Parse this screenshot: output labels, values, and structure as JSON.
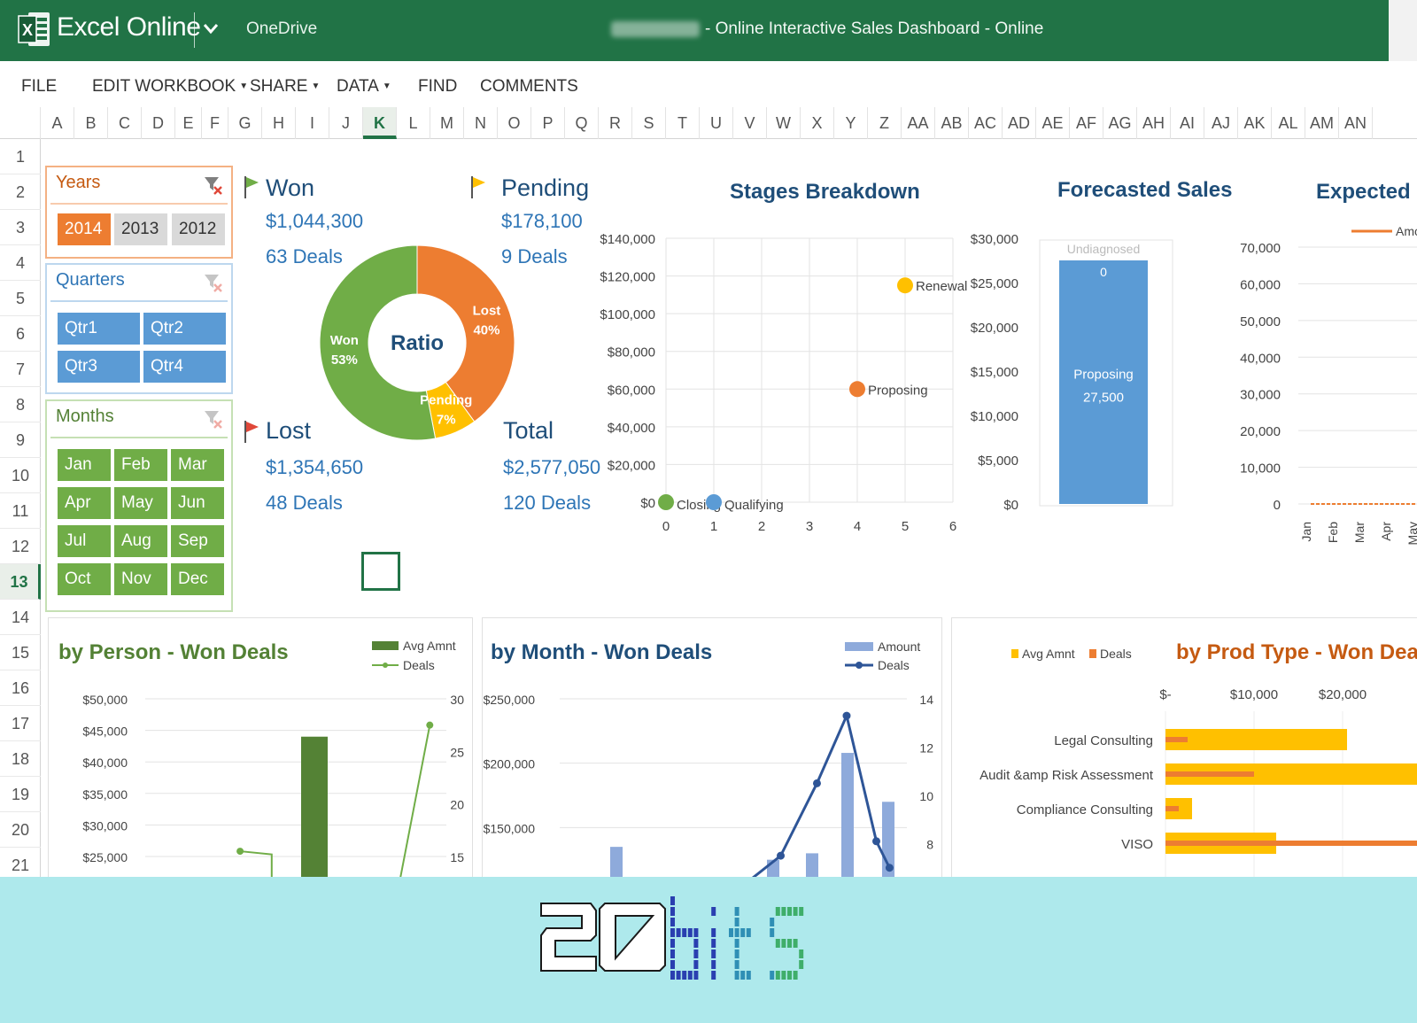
{
  "app": {
    "name": "Excel Online",
    "location": "OneDrive",
    "doc_title": "- Online Interactive Sales Dashboard - Online"
  },
  "ribbon": {
    "tabs": [
      {
        "label": "FILE",
        "caret": false
      },
      {
        "label": "EDIT WORKBOOK",
        "caret": true
      },
      {
        "label": "SHARE",
        "caret": true
      },
      {
        "label": "DATA",
        "caret": true
      },
      {
        "label": "FIND",
        "caret": false
      },
      {
        "label": "COMMENTS",
        "caret": false
      }
    ]
  },
  "grid": {
    "columns": [
      "A",
      "B",
      "C",
      "D",
      "E",
      "F",
      "G",
      "H",
      "I",
      "J",
      "K",
      "L",
      "M",
      "N",
      "O",
      "P",
      "Q",
      "R",
      "S",
      "T",
      "U",
      "V",
      "W",
      "X",
      "Y",
      "Z",
      "AA",
      "AB",
      "AC",
      "AD",
      "AE",
      "AF",
      "AG",
      "AH",
      "AI",
      "AJ",
      "AK",
      "AL",
      "AM",
      "AN"
    ],
    "selected_column": "K",
    "rows": [
      "1",
      "2",
      "3",
      "4",
      "5",
      "6",
      "7",
      "8",
      "9",
      "10",
      "11",
      "12",
      "13",
      "14",
      "15",
      "16",
      "17",
      "18",
      "19",
      "20",
      "21"
    ],
    "selected_row": "13"
  },
  "slicers": {
    "years": {
      "title": "Years",
      "items": [
        "2014",
        "2013",
        "2012"
      ],
      "selected": "2014"
    },
    "quarters": {
      "title": "Quarters",
      "items": [
        "Qtr1",
        "Qtr2",
        "Qtr3",
        "Qtr4"
      ]
    },
    "months": {
      "title": "Months",
      "items": [
        "Jan",
        "Feb",
        "Mar",
        "Apr",
        "May",
        "Jun",
        "Jul",
        "Aug",
        "Sep",
        "Oct",
        "Nov",
        "Dec"
      ]
    }
  },
  "kpis": {
    "won": {
      "label": "Won",
      "amount": "$1,044,300",
      "deals": "63 Deals"
    },
    "pending": {
      "label": "Pending",
      "amount": "$178,100",
      "deals": "9 Deals"
    },
    "lost": {
      "label": "Lost",
      "amount": "$1,354,650",
      "deals": "48 Deals"
    },
    "total": {
      "label": "Total",
      "amount": "$2,577,050",
      "deals": "120 Deals"
    }
  },
  "colors": {
    "excel_green": "#217346",
    "won": "#70ad47",
    "lost": "#ed7d31",
    "pending": "#ffc000",
    "blue": "#5b9bd5",
    "dark_blue": "#2e5597",
    "footer": "#aee9ec"
  },
  "chart_data": [
    {
      "id": "ratio",
      "type": "pie",
      "title": "Ratio",
      "labels": [
        "Lost",
        "Pending",
        "Won"
      ],
      "label_texts": [
        [
          "Lost",
          "40%"
        ],
        [
          "Pending",
          "7%"
        ],
        [
          "Won",
          "53%"
        ]
      ],
      "values": [
        40,
        7,
        53
      ],
      "colors": [
        "#ed7d31",
        "#ffc000",
        "#70ad47"
      ]
    },
    {
      "id": "stages",
      "type": "scatter",
      "title": "Stages Breakdown",
      "xlim": [
        0,
        6
      ],
      "ylim": [
        0,
        140000
      ],
      "x_ticks": [
        "0",
        "1",
        "2",
        "3",
        "4",
        "5",
        "6"
      ],
      "y_ticks": [
        "$0",
        "$20,000",
        "$40,000",
        "$60,000",
        "$80,000",
        "$100,000",
        "$120,000",
        "$140,000"
      ],
      "grid": true,
      "points": [
        {
          "label": "Closing",
          "x": 0,
          "y": 0,
          "color": "#70ad47"
        },
        {
          "label": "Qualifying",
          "x": 1,
          "y": 0,
          "color": "#5b9bd5"
        },
        {
          "label": "Proposing",
          "x": 4,
          "y": 60000,
          "color": "#ed7d31"
        },
        {
          "label": "Renewal",
          "x": 5,
          "y": 115000,
          "color": "#ffc000"
        }
      ]
    },
    {
      "id": "forecast",
      "type": "bar",
      "title": "Forecasted Sales",
      "ylim": [
        0,
        30000
      ],
      "y_ticks": [
        "$0",
        "$5,000",
        "$10,000",
        "$15,000",
        "$20,000",
        "$25,000",
        "$30,000"
      ],
      "series": [
        {
          "name": "Proposing",
          "value": 27500,
          "value_label": "27,500",
          "color": "#5b9bd5"
        },
        {
          "name": "Undiagnosed",
          "value": 0,
          "value_label": "0",
          "color": "#a5a5a5"
        }
      ]
    },
    {
      "id": "expected",
      "type": "line",
      "title": "Expected Sa",
      "legend": "Amou",
      "ylim": [
        0,
        70000
      ],
      "y_ticks": [
        "0",
        "10,000",
        "20,000",
        "30,000",
        "40,000",
        "50,000",
        "60,000",
        "70,000"
      ],
      "categories": [
        "Jan",
        "Feb",
        "Mar",
        "Apr",
        "May"
      ],
      "values": [
        0,
        0,
        0,
        0,
        0
      ],
      "color": "#ed7d31"
    },
    {
      "id": "by_person",
      "type": "bar",
      "title": "by Person - Won Deals",
      "ylim": [
        25000,
        50000
      ],
      "y_ticks": [
        "$25,000",
        "$30,000",
        "$35,000",
        "$40,000",
        "$45,000",
        "$50,000"
      ],
      "y2lim": [
        15,
        30
      ],
      "y2_ticks": [
        "15",
        "20",
        "25",
        "30"
      ],
      "series": [
        {
          "name": "Avg Amnt",
          "type": "bar",
          "values": [
            44000
          ],
          "color": "#548235"
        },
        {
          "name": "Deals",
          "type": "line",
          "points": [
            [
              0.3,
              15.5
            ],
            [
              0.4,
              15.2
            ],
            [
              0.9,
              27.5
            ]
          ],
          "color": "#70ad47"
        }
      ]
    },
    {
      "id": "by_month",
      "type": "bar",
      "title": "by Month - Won Deals",
      "ylim": [
        100000,
        250000
      ],
      "y_ticks": [
        "$150,000",
        "$200,000",
        "$250,000"
      ],
      "y2lim": [
        6,
        14
      ],
      "y2_ticks": [
        "8",
        "10",
        "12",
        "14"
      ],
      "series": [
        {
          "name": "Amount",
          "type": "bar",
          "values": [
            135000,
            110000,
            125000,
            130000,
            208000,
            170000
          ],
          "color": "#8eaadb"
        },
        {
          "name": "Deals",
          "type": "line",
          "points": [
            [
              0.55,
              6.2
            ],
            [
              0.67,
              7.5
            ],
            [
              0.78,
              10.5
            ],
            [
              0.87,
              13.3
            ],
            [
              0.96,
              8.1
            ],
            [
              1.0,
              7.0
            ]
          ],
          "color": "#2e5597"
        }
      ]
    },
    {
      "id": "by_prod_type",
      "type": "bar",
      "title": "by Prod Type - Won Deals",
      "x_ticks": [
        "$-",
        "$10,000",
        "$20,000",
        "$30,"
      ],
      "categories": [
        "Legal Consulting",
        "Audit &amp Risk Assessment",
        "Compliance Consulting",
        "VISO"
      ],
      "series": [
        {
          "name": "Avg Amnt",
          "values": [
            20500,
            31000,
            3000,
            12500
          ],
          "color": "#ffc000"
        },
        {
          "name": "Deals",
          "values": [
            2500,
            10000,
            1500,
            31000
          ],
          "color": "#ed7d31"
        }
      ]
    }
  ],
  "footer": {
    "brand": "20bits"
  }
}
